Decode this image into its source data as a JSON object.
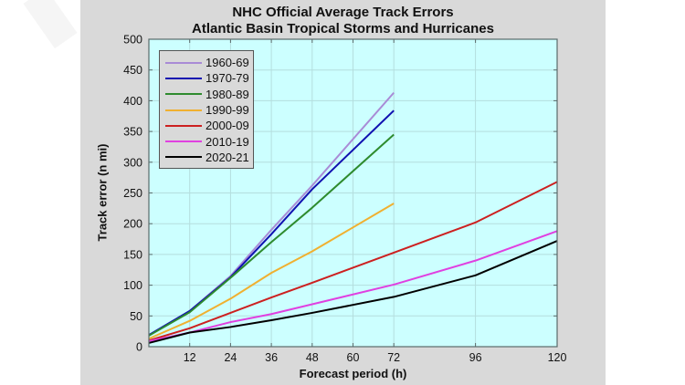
{
  "chart_data": {
    "type": "line",
    "title": "NHC Official Average Track Errors",
    "subtitle": "Atlantic Basin Tropical Storms and Hurricanes",
    "xlabel": "Forecast period (h)",
    "ylabel": "Track error (n mi)",
    "xlim": [
      0,
      120
    ],
    "ylim": [
      0,
      500
    ],
    "x_ticks": [
      12,
      24,
      36,
      48,
      60,
      72,
      96,
      120
    ],
    "y_ticks": [
      0,
      50,
      100,
      150,
      200,
      250,
      300,
      350,
      400,
      450,
      500
    ],
    "grid": true,
    "legend_position": "upper left",
    "plot_background": "#ccffff",
    "series": [
      {
        "name": "1960-69",
        "color": "#a98bd6",
        "x": [
          0,
          12,
          24,
          36,
          48,
          72
        ],
        "values": [
          19,
          58,
          115,
          190,
          262,
          413
        ]
      },
      {
        "name": "1970-79",
        "color": "#1010b0",
        "x": [
          0,
          12,
          24,
          36,
          48,
          72
        ],
        "values": [
          19,
          58,
          113,
          183,
          256,
          384
        ]
      },
      {
        "name": "1980-89",
        "color": "#2e8b2e",
        "x": [
          0,
          12,
          24,
          36,
          48,
          72
        ],
        "values": [
          18,
          56,
          112,
          170,
          226,
          345
        ]
      },
      {
        "name": "1990-99",
        "color": "#f0b030",
        "x": [
          0,
          12,
          24,
          36,
          48,
          72
        ],
        "values": [
          13,
          42,
          78,
          120,
          155,
          233
        ]
      },
      {
        "name": "2000-09",
        "color": "#cc2020",
        "x": [
          0,
          12,
          24,
          36,
          48,
          72,
          96,
          120
        ],
        "values": [
          10,
          30,
          55,
          80,
          104,
          153,
          202,
          268
        ]
      },
      {
        "name": "2010-19",
        "color": "#e040e0",
        "x": [
          0,
          12,
          24,
          36,
          48,
          72,
          96,
          120
        ],
        "values": [
          9,
          23,
          40,
          53,
          69,
          101,
          140,
          188
        ]
      },
      {
        "name": "2020-21",
        "color": "#000000",
        "x": [
          0,
          12,
          24,
          36,
          48,
          72,
          96,
          120
        ],
        "values": [
          6,
          23,
          32,
          43,
          55,
          81,
          116,
          172
        ]
      }
    ]
  },
  "legend": {
    "items": [
      "1960-69",
      "1970-79",
      "1980-89",
      "1990-99",
      "2000-09",
      "2010-19",
      "2020-21"
    ]
  }
}
